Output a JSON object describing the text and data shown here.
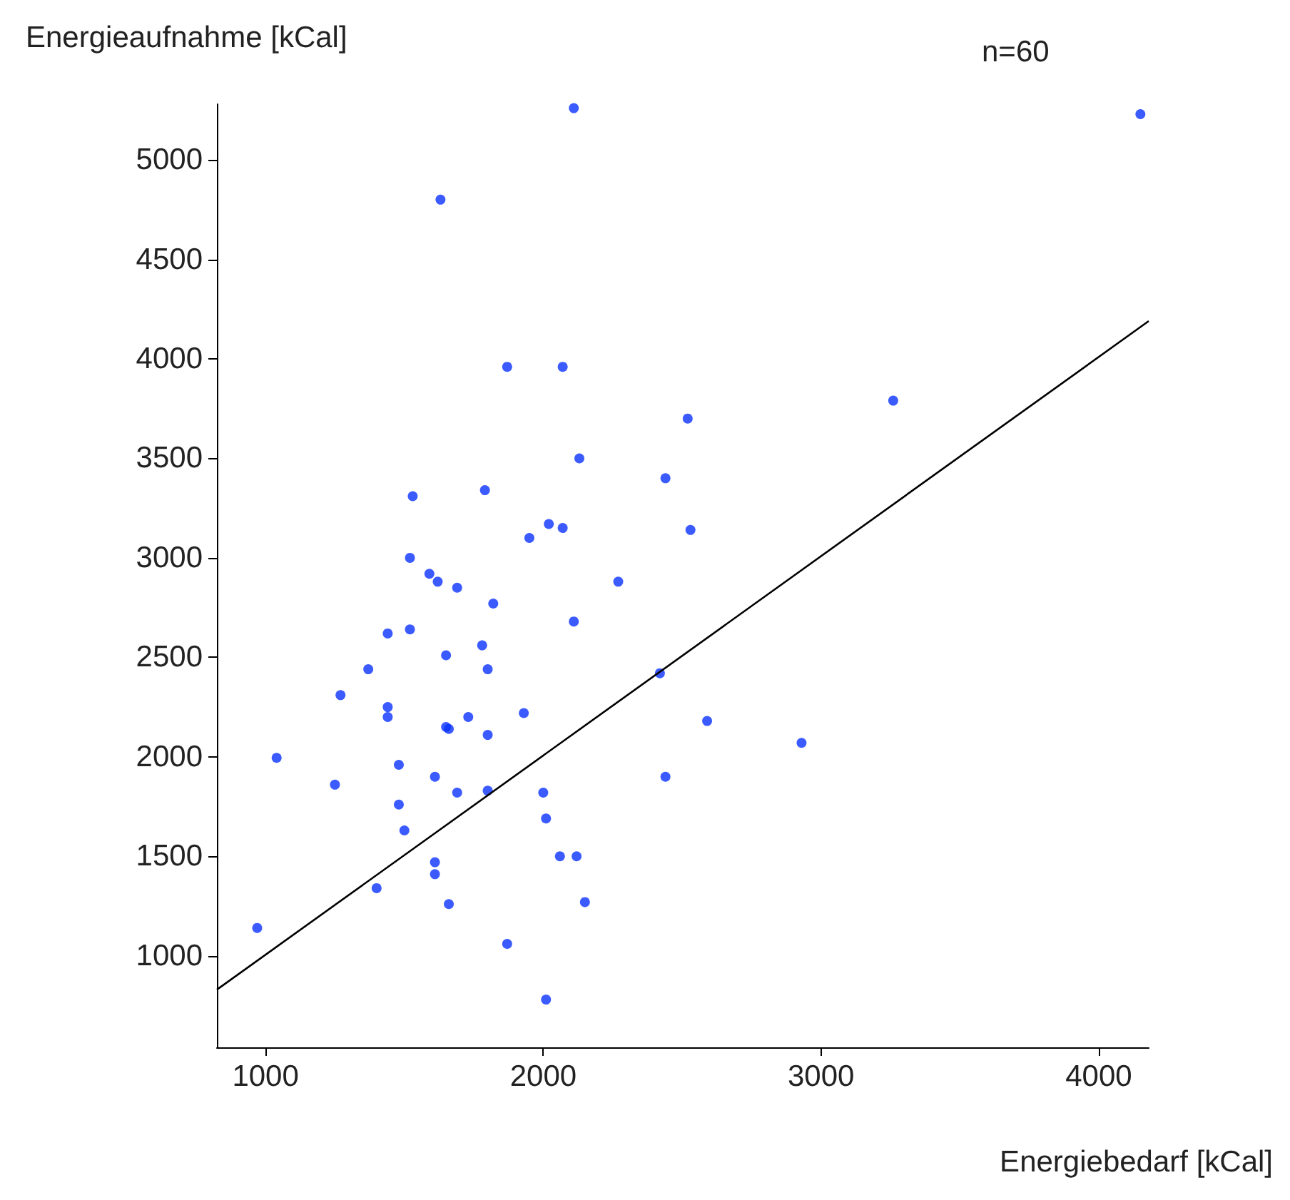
{
  "chart_data": {
    "type": "scatter",
    "xlabel": "Energiebedarf [kCal]",
    "ylabel": "Energieaufnahme [kCal]",
    "annotations": [
      "n=60"
    ],
    "xlim": [
      825,
      4180
    ],
    "ylim": [
      540,
      5280
    ],
    "xticks": [
      1000,
      2000,
      3000,
      4000
    ],
    "yticks": [
      1000,
      1500,
      2000,
      2500,
      3000,
      3500,
      4000,
      4500,
      5000
    ],
    "grid": false,
    "marker": "circle",
    "series": [
      {
        "type": "scatter",
        "color": "#0a32ff",
        "x": [
          970,
          1040,
          1250,
          1270,
          1370,
          1400,
          1440,
          1440,
          1440,
          1480,
          1480,
          1500,
          1530,
          1520,
          1520,
          1590,
          1620,
          1610,
          1610,
          1610,
          1630,
          1650,
          1650,
          1660,
          1660,
          1690,
          1690,
          1730,
          1790,
          1780,
          1800,
          1800,
          1800,
          1820,
          1870,
          1870,
          1950,
          1930,
          2000,
          2010,
          2010,
          2020,
          2060,
          2070,
          2070,
          2110,
          2110,
          2120,
          2130,
          2150,
          2270,
          2420,
          2440,
          2440,
          2520,
          2530,
          2590,
          2930,
          3260,
          4150
        ],
        "values": [
          1140,
          1995,
          1860,
          2310,
          2440,
          1340,
          2620,
          2250,
          2200,
          1960,
          1760,
          1630,
          3310,
          3000,
          2640,
          2920,
          2880,
          1900,
          1470,
          1410,
          4800,
          2510,
          2150,
          2140,
          1260,
          2850,
          1820,
          2200,
          3340,
          2560,
          2440,
          2110,
          1830,
          2770,
          3960,
          1060,
          3100,
          2220,
          1820,
          1690,
          780,
          3170,
          1500,
          3960,
          3150,
          2680,
          5260,
          1500,
          3500,
          1270,
          2880,
          2420,
          3400,
          1900,
          3700,
          3140,
          2180,
          2070,
          3790,
          5230
        ]
      },
      {
        "type": "line",
        "color": "#000000",
        "line_style": "solid",
        "marker": "none",
        "x": [
          825,
          4180
        ],
        "values": [
          830,
          4190
        ]
      }
    ]
  }
}
